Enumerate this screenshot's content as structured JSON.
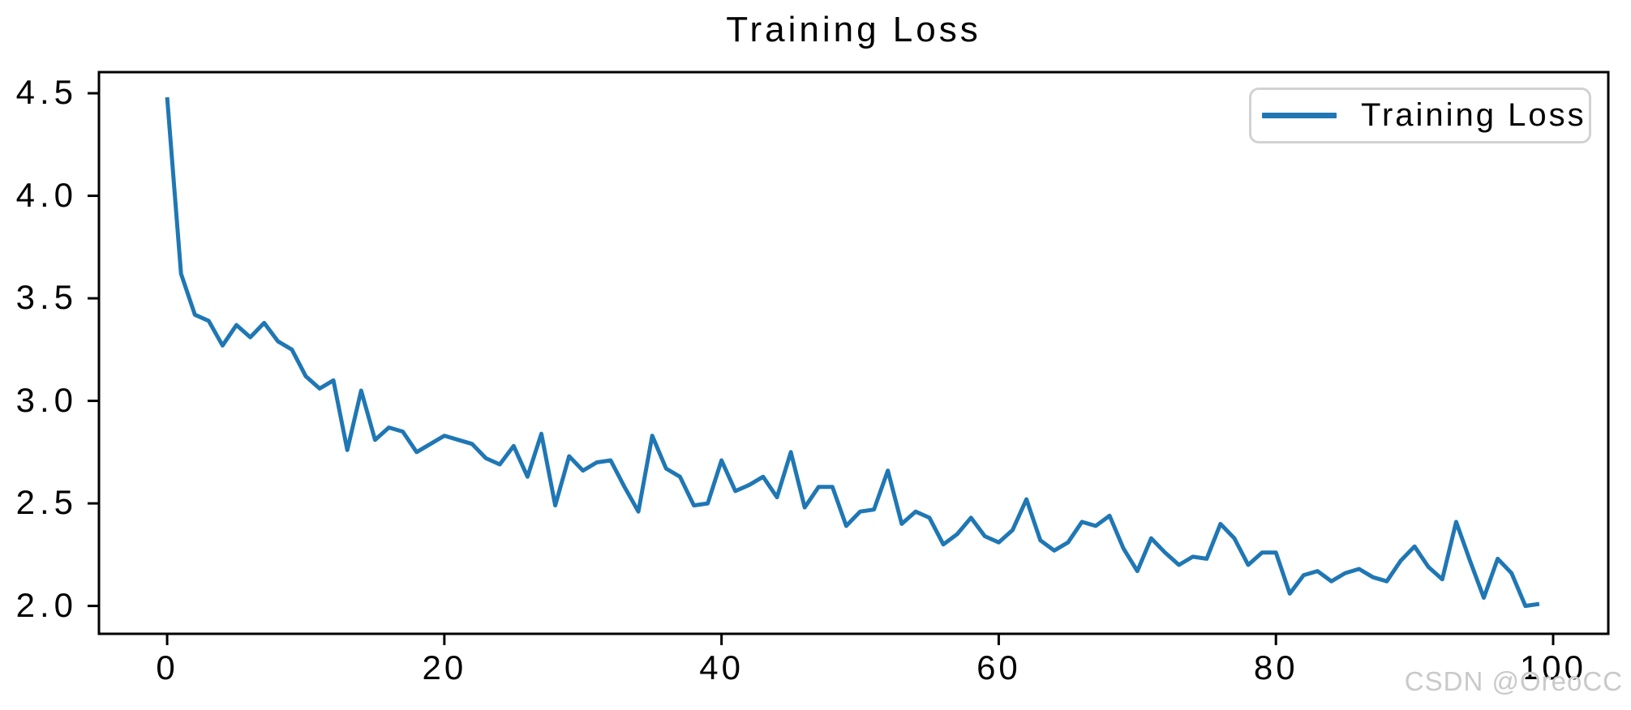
{
  "title": "Training Loss",
  "legend": {
    "label": "Training Loss"
  },
  "watermark": "CSDN @OreoCC",
  "colors": {
    "line": "#1f77b4",
    "axis": "#000000",
    "text": "#000000",
    "legend_border": "#d2d2d2",
    "watermark": "#c9c9c9",
    "background": "#ffffff"
  },
  "chart_data": {
    "type": "line",
    "title": "Training Loss",
    "xlabel": "",
    "ylabel": "",
    "grid": false,
    "legend_entries": [
      "Training Loss"
    ],
    "legend_position": "upper right",
    "x_ticks": [
      0,
      20,
      40,
      60,
      80,
      100
    ],
    "x_tick_labels": [
      "0",
      "20",
      "40",
      "60",
      "80",
      "100"
    ],
    "y_ticks": [
      4.5,
      4.0,
      3.5,
      3.0,
      2.5,
      2.0
    ],
    "y_tick_labels": [
      "4.5",
      "4.0",
      "3.5",
      "3.0",
      "2.5",
      "2.0"
    ],
    "xlim": [
      -4.92,
      103.98
    ],
    "ylim": [
      1.864,
      4.603
    ],
    "series": [
      {
        "name": "Training Loss",
        "color": "#1f77b4",
        "x_start": 0,
        "x_step": 1,
        "values": [
          4.48,
          3.62,
          3.42,
          3.39,
          3.27,
          3.37,
          3.31,
          3.38,
          3.29,
          3.25,
          3.12,
          3.06,
          3.1,
          2.76,
          3.05,
          2.81,
          2.87,
          2.85,
          2.75,
          2.79,
          2.83,
          2.81,
          2.79,
          2.72,
          2.69,
          2.78,
          2.63,
          2.84,
          2.49,
          2.73,
          2.66,
          2.7,
          2.71,
          2.58,
          2.46,
          2.83,
          2.67,
          2.63,
          2.49,
          2.5,
          2.71,
          2.56,
          2.59,
          2.63,
          2.53,
          2.75,
          2.48,
          2.58,
          2.58,
          2.39,
          2.46,
          2.47,
          2.66,
          2.4,
          2.46,
          2.43,
          2.3,
          2.35,
          2.43,
          2.34,
          2.31,
          2.37,
          2.52,
          2.32,
          2.27,
          2.31,
          2.41,
          2.39,
          2.44,
          2.28,
          2.17,
          2.33,
          2.26,
          2.2,
          2.24,
          2.23,
          2.4,
          2.33,
          2.2,
          2.26,
          2.26,
          2.06,
          2.15,
          2.17,
          2.12,
          2.16,
          2.18,
          2.14,
          2.12,
          2.22,
          2.29,
          2.19,
          2.13,
          2.41,
          2.22,
          2.04,
          2.23,
          2.16,
          2.0,
          2.01
        ]
      }
    ]
  }
}
